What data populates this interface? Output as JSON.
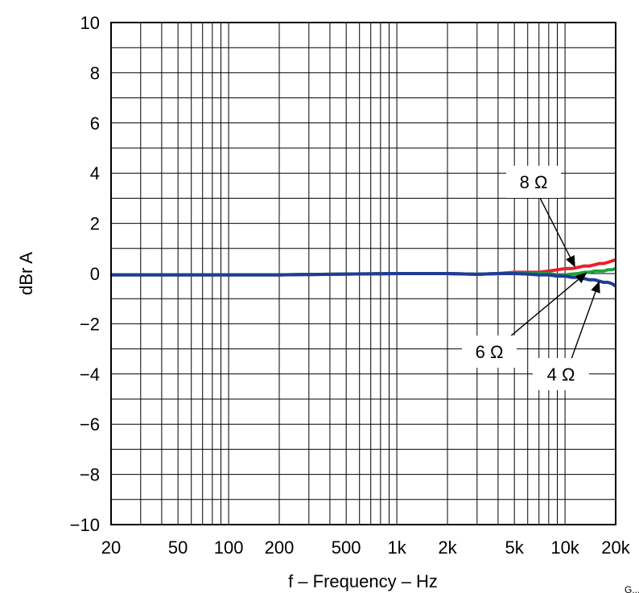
{
  "chart_data": {
    "type": "line",
    "title": "",
    "xlabel": "f – Frequency – Hz",
    "ylabel": "dBr A",
    "x_scale": "log",
    "xlim": [
      20,
      20000
    ],
    "ylim": [
      -10,
      10
    ],
    "grid": true,
    "x_ticks": [
      {
        "value": 20,
        "label": "20"
      },
      {
        "value": 50,
        "label": "50"
      },
      {
        "value": 100,
        "label": "100"
      },
      {
        "value": 200,
        "label": "200"
      },
      {
        "value": 500,
        "label": "500"
      },
      {
        "value": 1000,
        "label": "1k"
      },
      {
        "value": 2000,
        "label": "2k"
      },
      {
        "value": 5000,
        "label": "5k"
      },
      {
        "value": 10000,
        "label": "10k"
      },
      {
        "value": 20000,
        "label": "20k"
      }
    ],
    "y_ticks": [
      {
        "value": 10,
        "label": "10"
      },
      {
        "value": 8,
        "label": "8"
      },
      {
        "value": 6,
        "label": "6"
      },
      {
        "value": 4,
        "label": "4"
      },
      {
        "value": 2,
        "label": "2"
      },
      {
        "value": 0,
        "label": "0"
      },
      {
        "value": -2,
        "label": "−2"
      },
      {
        "value": -4,
        "label": "−4"
      },
      {
        "value": -6,
        "label": "−6"
      },
      {
        "value": -8,
        "label": "−8"
      },
      {
        "value": -10,
        "label": "−10"
      }
    ],
    "series": [
      {
        "name": "8 Ω",
        "color": "#e8202a",
        "x": [
          20,
          50,
          100,
          200,
          500,
          1000,
          2000,
          3000,
          4000,
          5000,
          6000,
          7000,
          8000,
          9000,
          10000,
          11000,
          12000,
          13000,
          14000,
          15000,
          16000,
          17000,
          18000,
          19000,
          20000
        ],
        "y": [
          -0.05,
          -0.05,
          -0.05,
          -0.05,
          -0.02,
          0.0,
          0.0,
          -0.03,
          0.0,
          0.05,
          0.05,
          0.05,
          0.1,
          0.15,
          0.2,
          0.2,
          0.25,
          0.3,
          0.3,
          0.35,
          0.4,
          0.4,
          0.45,
          0.5,
          0.55
        ]
      },
      {
        "name": "6 Ω",
        "color": "#1fa23a",
        "x": [
          20,
          50,
          100,
          200,
          500,
          1000,
          2000,
          3000,
          4000,
          5000,
          6000,
          7000,
          8000,
          9000,
          10000,
          11000,
          12000,
          13000,
          14000,
          15000,
          16000,
          17000,
          18000,
          19000,
          20000
        ],
        "y": [
          -0.05,
          -0.05,
          -0.05,
          -0.05,
          -0.02,
          0.0,
          0.0,
          -0.03,
          0.0,
          0.02,
          0.0,
          0.0,
          0.0,
          -0.05,
          -0.05,
          -0.02,
          0.0,
          0.05,
          0.05,
          0.1,
          0.1,
          0.1,
          0.15,
          0.15,
          0.2
        ]
      },
      {
        "name": "4 Ω",
        "color": "#1f3c96",
        "x": [
          20,
          50,
          100,
          200,
          500,
          1000,
          2000,
          3000,
          4000,
          5000,
          6000,
          7000,
          8000,
          9000,
          10000,
          11000,
          12000,
          13000,
          14000,
          15000,
          16000,
          17000,
          18000,
          19000,
          20000
        ],
        "y": [
          -0.05,
          -0.05,
          -0.05,
          -0.05,
          -0.02,
          0.0,
          0.0,
          -0.03,
          0.0,
          0.0,
          -0.02,
          -0.05,
          -0.05,
          -0.1,
          -0.1,
          -0.15,
          -0.15,
          -0.2,
          -0.25,
          -0.25,
          -0.3,
          -0.35,
          -0.35,
          -0.4,
          -0.5
        ]
      }
    ],
    "annotations": [
      {
        "label": "8 Ω",
        "target_x": 11500,
        "target_y": 0.25
      },
      {
        "label": "6 Ω",
        "target_x": 13500,
        "target_y": 0.05
      },
      {
        "label": "4 Ω",
        "target_x": 16000,
        "target_y": -0.3
      }
    ],
    "corner_mark": "G..."
  }
}
